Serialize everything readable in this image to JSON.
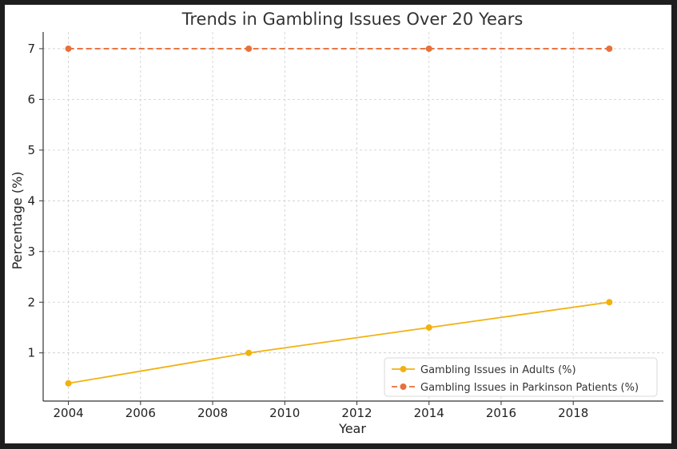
{
  "chart_data": {
    "type": "line",
    "title": "Trends in Gambling Issues Over 20 Years",
    "xlabel": "Year",
    "ylabel": "Percentage (%)",
    "x": [
      2004,
      2009,
      2014,
      2019
    ],
    "xlim": [
      2003.3,
      2020.5
    ],
    "ylim": [
      0.05,
      7.33
    ],
    "xticks": [
      "2004",
      "2006",
      "2008",
      "2010",
      "2012",
      "2014",
      "2016",
      "2018"
    ],
    "yticks": [
      "1",
      "2",
      "3",
      "4",
      "5",
      "6",
      "7"
    ],
    "grid": true,
    "legend_position": "bottom-right",
    "series": [
      {
        "name": "Gambling Issues in Adults (%)",
        "values": [
          0.4,
          1.0,
          1.5,
          2.0
        ],
        "color": "#f2b10f",
        "linestyle": "solid",
        "marker": "circle"
      },
      {
        "name": "Gambling Issues in Parkinson Patients (%)",
        "values": [
          7,
          7,
          7,
          7
        ],
        "color": "#e8703a",
        "linestyle": "dashed",
        "marker": "circle"
      }
    ]
  }
}
